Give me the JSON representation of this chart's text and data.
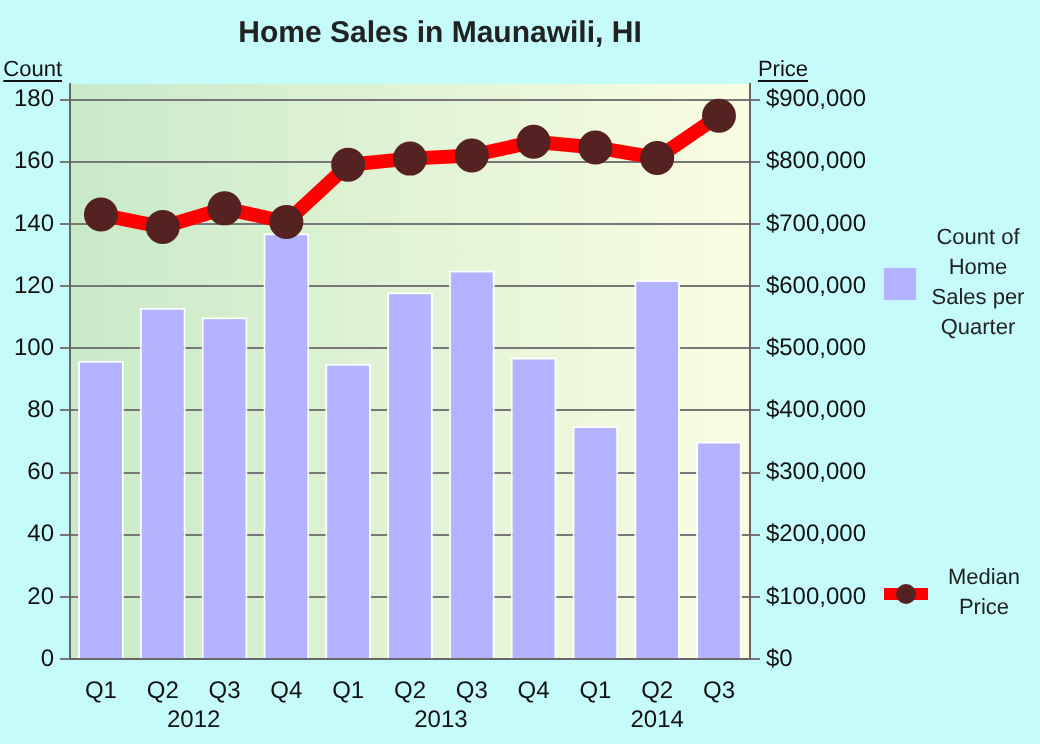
{
  "chart_data": {
    "type": "bar",
    "title": "Home Sales in Maunawili, HI",
    "ylabel": "Count",
    "y2label": "Price",
    "categories": [
      "Q1",
      "Q2",
      "Q3",
      "Q4",
      "Q1",
      "Q2",
      "Q3",
      "Q4",
      "Q1",
      "Q2",
      "Q3"
    ],
    "series": [
      {
        "name": "Count of Home Sales per Quarter",
        "color": "#b3b3ff",
        "values": [
          96,
          113,
          110,
          137,
          95,
          118,
          125,
          97,
          75,
          122,
          70
        ]
      },
      {
        "name": "Median Price",
        "type": "line",
        "axis": "y2",
        "color": "#ff0000",
        "marker": "circle",
        "values": [
          715000,
          695000,
          725000,
          703000,
          795000,
          805000,
          810000,
          832000,
          823000,
          806000,
          874000
        ]
      }
    ],
    "ylim": [
      0,
      185
    ],
    "yticks": [
      0,
      20,
      40,
      60,
      80,
      100,
      120,
      140,
      160,
      180
    ],
    "y2lim": [
      0,
      925000
    ],
    "y2ticks": [
      {
        "value": 0,
        "label": "$0"
      },
      {
        "value": 100000,
        "label": "$100,000"
      },
      {
        "value": 200000,
        "label": "$200,000"
      },
      {
        "value": 300000,
        "label": "$300,000"
      },
      {
        "value": 400000,
        "label": "$400,000"
      },
      {
        "value": 500000,
        "label": "$500,000"
      },
      {
        "value": 600000,
        "label": "$600,000"
      },
      {
        "value": 700000,
        "label": "$700,000"
      },
      {
        "value": 800000,
        "label": "$800,000"
      },
      {
        "value": 900000,
        "label": "$900,000"
      }
    ],
    "annotations": [
      "2012",
      "2013",
      "2014"
    ],
    "grid": "y",
    "legend": "right"
  }
}
